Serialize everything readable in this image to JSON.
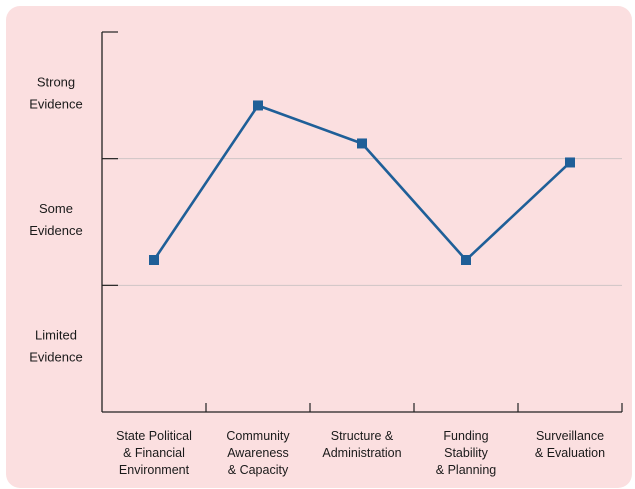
{
  "chart_data": {
    "type": "line",
    "title": "",
    "xlabel": "",
    "ylabel": "",
    "categories": [
      [
        "State Political",
        "& Financial",
        "Environment"
      ],
      [
        "Community",
        "Awareness",
        "& Capacity"
      ],
      [
        "Structure &",
        "Administration"
      ],
      [
        "Funding",
        "Stability",
        "& Planning"
      ],
      [
        "Surveillance",
        "& Evaluation"
      ]
    ],
    "y_levels": [
      [
        "Limited",
        "Evidence"
      ],
      [
        "Some",
        "Evidence"
      ],
      [
        "Strong",
        "Evidence"
      ]
    ],
    "ylim": [
      0,
      3
    ],
    "values": [
      1.2,
      2.42,
      2.12,
      1.2,
      1.97
    ],
    "grid": "horizontal lines at level boundaries",
    "colors": {
      "background": "#fbdfe0",
      "line": "#1f5f98",
      "axis": "#222222",
      "grid": "#cfc4c6"
    }
  }
}
